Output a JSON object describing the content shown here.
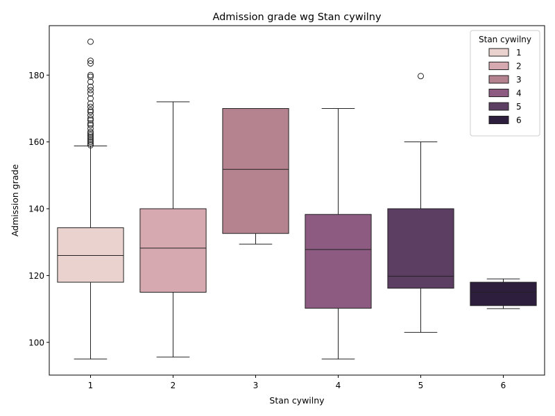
{
  "chart_data": {
    "type": "boxplot",
    "title": "Admission grade wg Stan cywilny",
    "xlabel": "Stan cywilny",
    "ylabel": "Admission grade",
    "ylim": [
      90.2,
      194.8
    ],
    "yticks": [
      100,
      120,
      140,
      160,
      180
    ],
    "categories": [
      "1",
      "2",
      "3",
      "4",
      "5",
      "6"
    ],
    "legend": {
      "title": "Stan cywilny",
      "position": "top-right",
      "entries": [
        "1",
        "2",
        "3",
        "4",
        "5",
        "6"
      ]
    },
    "colors": [
      "#ead3cf",
      "#d6a9b0",
      "#b4838f",
      "#8d5b81",
      "#5d3e63",
      "#2d1e3d"
    ],
    "boxes": [
      {
        "category": "1",
        "whisker_low": 95,
        "q1": 118,
        "median": 126,
        "q3": 134.3,
        "whisker_high": 158.8,
        "outliers": [
          159,
          159.5,
          160,
          160.5,
          161,
          161.5,
          162,
          162.5,
          163,
          164,
          165,
          165.5,
          166.5,
          167,
          168,
          169,
          169.5,
          170.5,
          171.5,
          173,
          174.5,
          175.5,
          176.5,
          178,
          179.5,
          180,
          183.5,
          184.3,
          190
        ]
      },
      {
        "category": "2",
        "whisker_low": 95.6,
        "q1": 115,
        "median": 128.2,
        "q3": 140,
        "whisker_high": 172,
        "outliers": []
      },
      {
        "category": "3",
        "whisker_low": 129.4,
        "q1": 132.6,
        "median": 151.8,
        "q3": 170,
        "whisker_high": 170,
        "outliers": []
      },
      {
        "category": "4",
        "whisker_low": 95,
        "q1": 110.2,
        "median": 127.8,
        "q3": 138.3,
        "whisker_high": 170,
        "outliers": []
      },
      {
        "category": "5",
        "whisker_low": 103,
        "q1": 116.2,
        "median": 119.8,
        "q3": 140,
        "whisker_high": 160,
        "outliers": [
          179.7
        ]
      },
      {
        "category": "6",
        "whisker_low": 110.1,
        "q1": 111,
        "median": 115,
        "q3": 118,
        "whisker_high": 119,
        "outliers": []
      }
    ]
  }
}
